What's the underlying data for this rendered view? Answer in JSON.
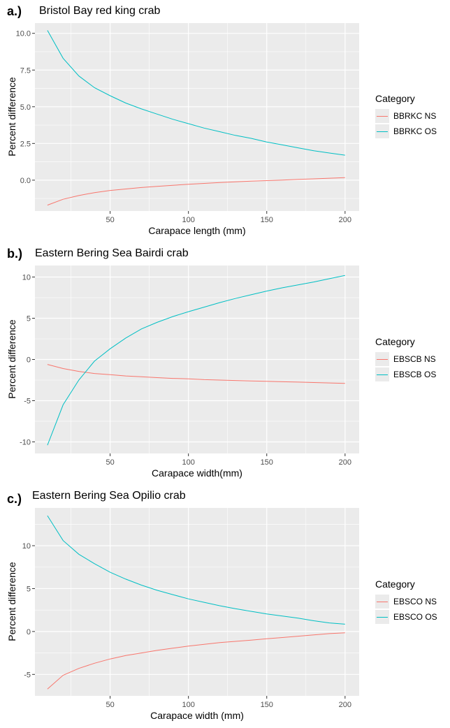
{
  "colors": {
    "ns": "#F8766D",
    "os": "#00BFC4",
    "panel_bg": "#EBEBEB",
    "grid": "#FFFFFF"
  },
  "chart_data": [
    {
      "type": "line",
      "panel_label": "a.)",
      "title": "Bristol Bay red king crab",
      "xlabel": "Carapace length (mm)",
      "ylabel": "Percent difference",
      "xlim": [
        2,
        209
      ],
      "ylim": [
        -2.1,
        10.7
      ],
      "x_ticks": [
        50,
        100,
        150,
        200
      ],
      "y_ticks": [
        0.0,
        2.5,
        5.0,
        7.5,
        10.0
      ],
      "y_tick_labels": [
        "0.0",
        "2.5",
        "5.0",
        "7.5",
        "10.0"
      ],
      "grid": true,
      "legend_title": "Category",
      "legend_position": "right",
      "x": [
        10,
        20,
        30,
        40,
        50,
        60,
        70,
        80,
        90,
        100,
        110,
        120,
        130,
        140,
        150,
        160,
        170,
        180,
        190,
        200
      ],
      "series": [
        {
          "name": "BBRKC NS",
          "color_key": "ns",
          "values": [
            -1.7,
            -1.3,
            -1.05,
            -0.85,
            -0.7,
            -0.6,
            -0.5,
            -0.42,
            -0.35,
            -0.28,
            -0.22,
            -0.16,
            -0.11,
            -0.07,
            -0.03,
            0.01,
            0.05,
            0.09,
            0.13,
            0.17
          ]
        },
        {
          "name": "BBRKC OS",
          "color_key": "os",
          "values": [
            10.2,
            8.3,
            7.1,
            6.3,
            5.75,
            5.25,
            4.85,
            4.5,
            4.15,
            3.85,
            3.55,
            3.3,
            3.05,
            2.85,
            2.6,
            2.4,
            2.2,
            2.0,
            1.85,
            1.7
          ]
        }
      ]
    },
    {
      "type": "line",
      "panel_label": "b.)",
      "title": "Eastern Bering Sea Bairdi crab",
      "xlabel": "Carapace width(mm)",
      "ylabel": "Percent difference",
      "xlim": [
        2,
        209
      ],
      "ylim": [
        -11.4,
        11.4
      ],
      "x_ticks": [
        50,
        100,
        150,
        200
      ],
      "y_ticks": [
        -10,
        -5,
        0,
        5,
        10
      ],
      "y_tick_labels": [
        "-10",
        "-5",
        "0",
        "5",
        "10"
      ],
      "grid": true,
      "legend_title": "Category",
      "legend_position": "right",
      "x": [
        10,
        20,
        30,
        40,
        50,
        60,
        70,
        80,
        90,
        100,
        110,
        120,
        130,
        140,
        150,
        160,
        170,
        180,
        190,
        200
      ],
      "series": [
        {
          "name": "EBSCB NS",
          "color_key": "ns",
          "values": [
            -0.6,
            -1.1,
            -1.45,
            -1.7,
            -1.85,
            -2.0,
            -2.1,
            -2.2,
            -2.3,
            -2.35,
            -2.45,
            -2.5,
            -2.55,
            -2.6,
            -2.65,
            -2.7,
            -2.75,
            -2.8,
            -2.85,
            -2.9
          ]
        },
        {
          "name": "EBSCB OS",
          "color_key": "os",
          "values": [
            -10.4,
            -5.5,
            -2.5,
            -0.2,
            1.3,
            2.6,
            3.7,
            4.5,
            5.2,
            5.8,
            6.35,
            6.9,
            7.4,
            7.85,
            8.3,
            8.7,
            9.05,
            9.4,
            9.8,
            10.2
          ]
        }
      ]
    },
    {
      "type": "line",
      "panel_label": "c.)",
      "title": "Eastern Bering Sea Opilio crab",
      "xlabel": "Carapace width (mm)",
      "ylabel": "Percent difference",
      "xlim": [
        2,
        209
      ],
      "ylim": [
        -7.5,
        14.4
      ],
      "x_ticks": [
        50,
        100,
        150,
        200
      ],
      "y_ticks": [
        -5,
        0,
        5,
        10
      ],
      "y_tick_labels": [
        "-5",
        "0",
        "5",
        "10"
      ],
      "grid": true,
      "legend_title": "Category",
      "legend_position": "right",
      "x": [
        10,
        20,
        30,
        40,
        50,
        60,
        70,
        80,
        90,
        100,
        110,
        120,
        130,
        140,
        150,
        160,
        170,
        180,
        190,
        200
      ],
      "series": [
        {
          "name": "EBSCO NS",
          "color_key": "ns",
          "values": [
            -6.7,
            -5.1,
            -4.3,
            -3.7,
            -3.2,
            -2.8,
            -2.5,
            -2.2,
            -1.95,
            -1.7,
            -1.5,
            -1.3,
            -1.15,
            -1.0,
            -0.85,
            -0.7,
            -0.55,
            -0.4,
            -0.25,
            -0.15
          ]
        },
        {
          "name": "EBSCO OS",
          "color_key": "os",
          "values": [
            13.5,
            10.6,
            9.0,
            7.9,
            6.9,
            6.1,
            5.4,
            4.8,
            4.3,
            3.8,
            3.4,
            3.0,
            2.65,
            2.35,
            2.05,
            1.8,
            1.55,
            1.25,
            1.0,
            0.85
          ]
        }
      ]
    }
  ]
}
